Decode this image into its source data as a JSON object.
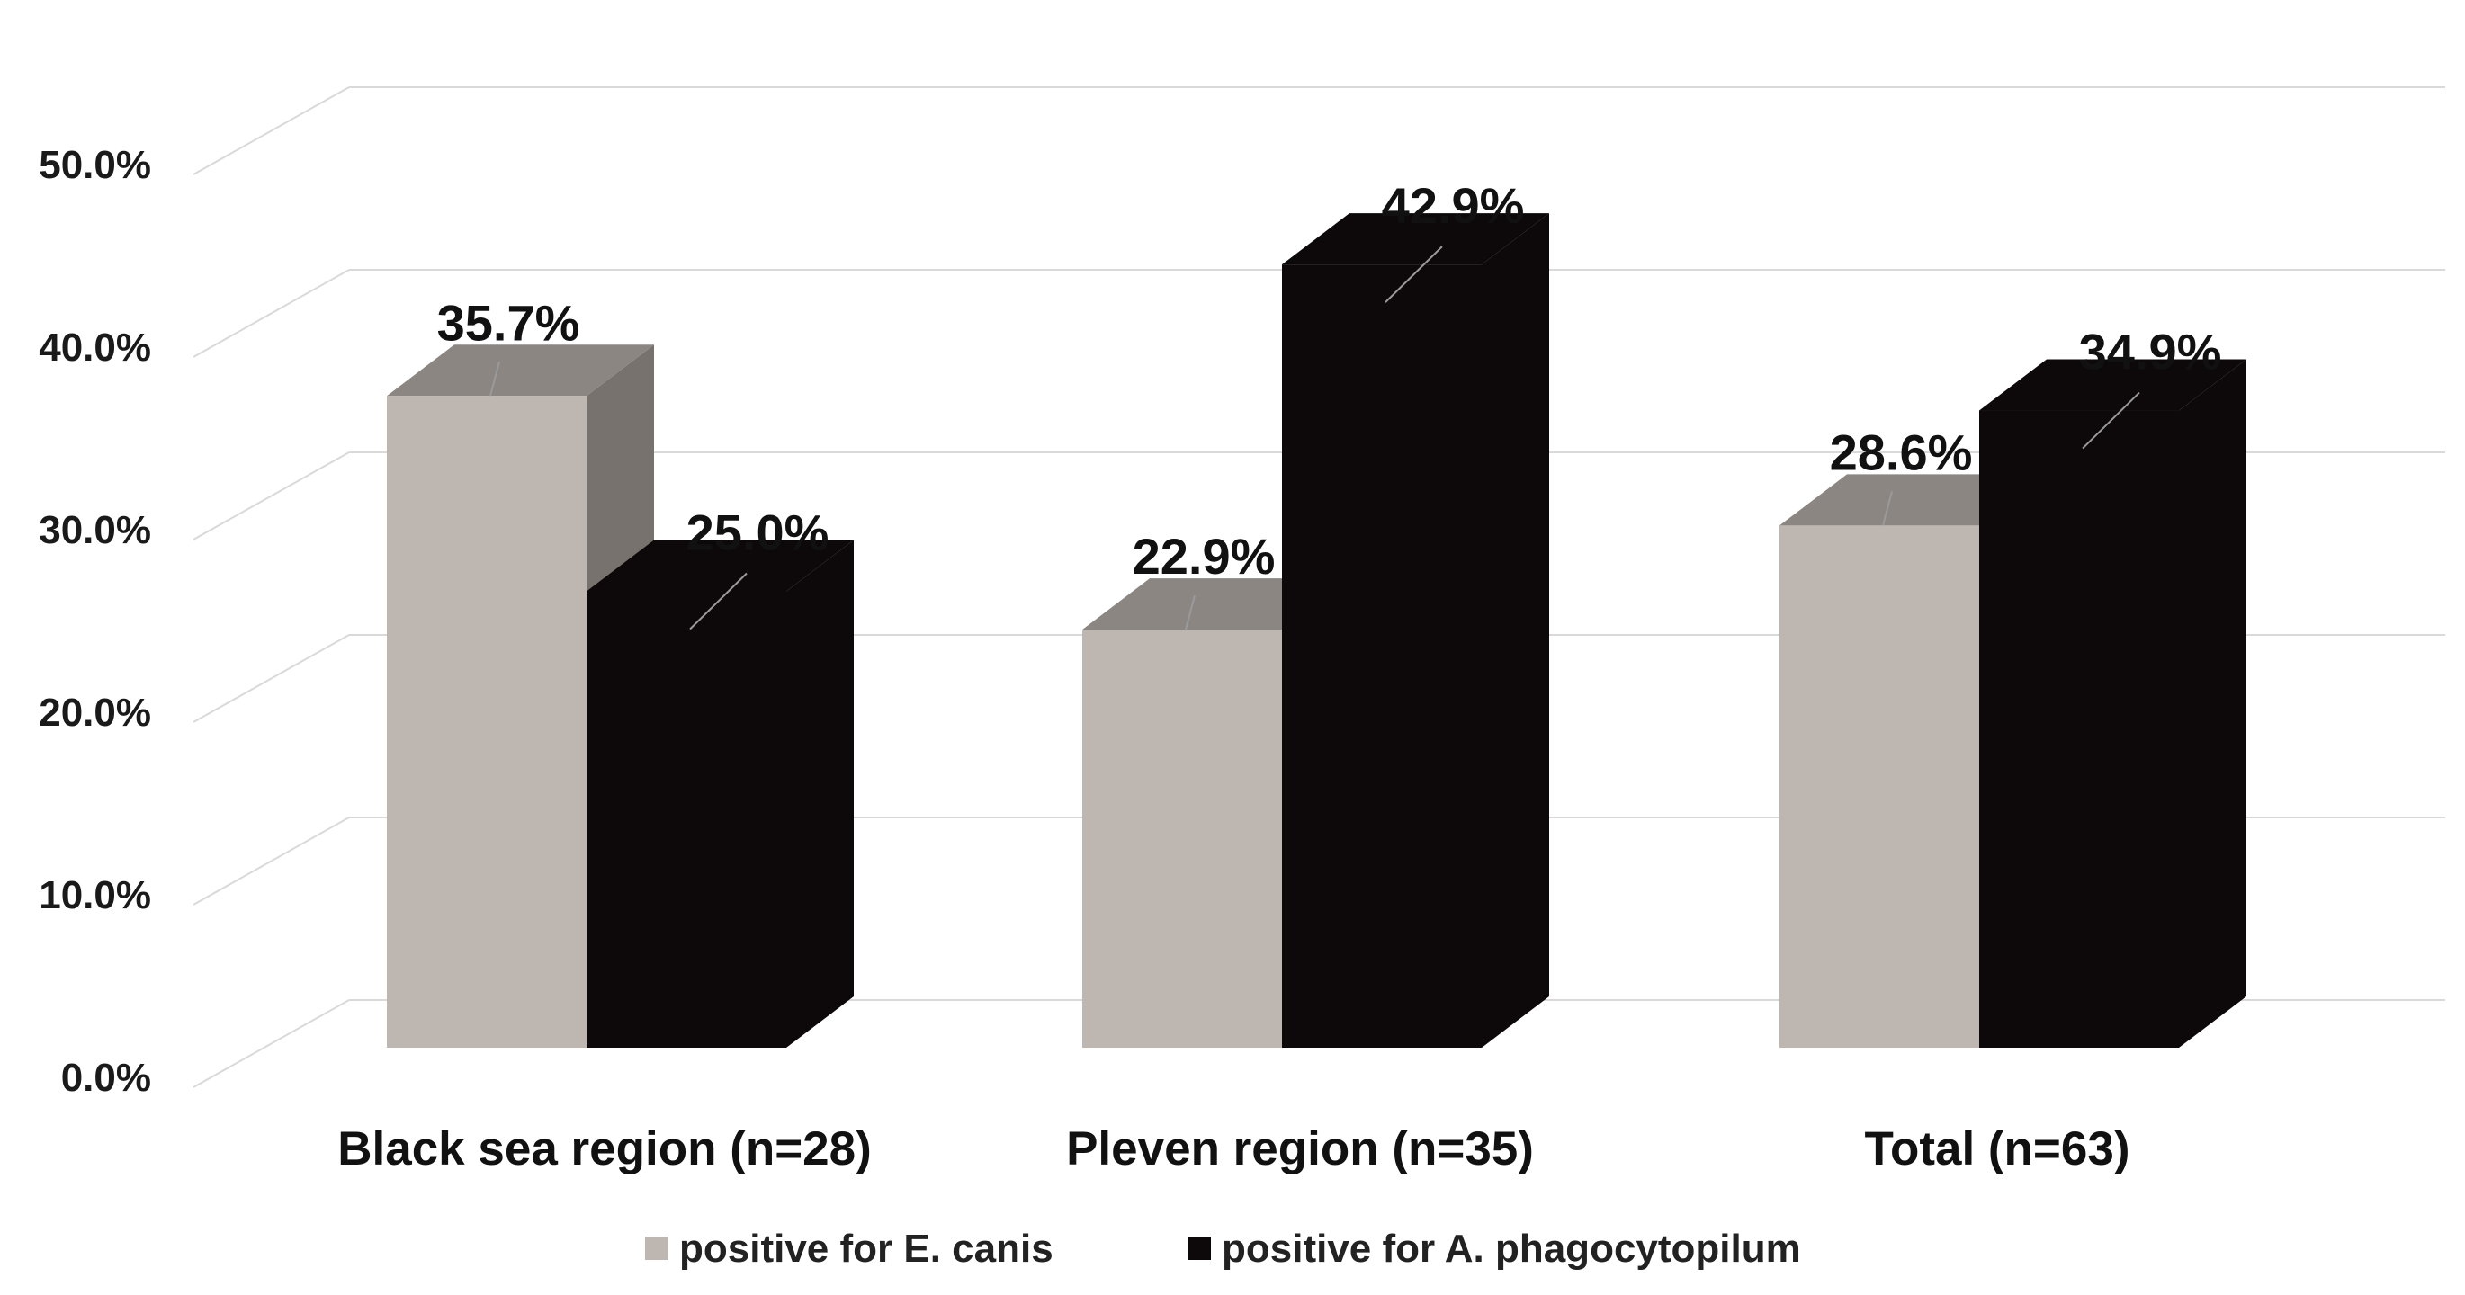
{
  "chart_data": {
    "type": "bar",
    "projection": "3d",
    "categories": [
      "Black sea region (n=28)",
      "Pleven region (n=35)",
      "Total (n=63)"
    ],
    "series": [
      {
        "name": "positive for E. canis",
        "values": [
          35.7,
          22.9,
          28.6
        ],
        "labels": [
          "35.7%",
          "22.9%",
          "28.6%"
        ],
        "color": "#bdb6b1",
        "top_color": "#8b8682",
        "side_color": "#77726e"
      },
      {
        "name": "positive for A. phagocytopilum",
        "values": [
          25.0,
          42.9,
          34.9
        ],
        "labels": [
          "25.0%",
          "42.9%",
          "34.9%"
        ],
        "color": "#0d0809",
        "top_color": "#0d0809",
        "side_color": "#0d0809"
      }
    ],
    "y_ticks": [
      "0.0%",
      "10.0%",
      "20.0%",
      "30.0%",
      "40.0%",
      "50.0%"
    ],
    "ylim": [
      0,
      50
    ],
    "grid": true,
    "legend_position": "bottom",
    "grid_color": "#d9d9d9"
  }
}
